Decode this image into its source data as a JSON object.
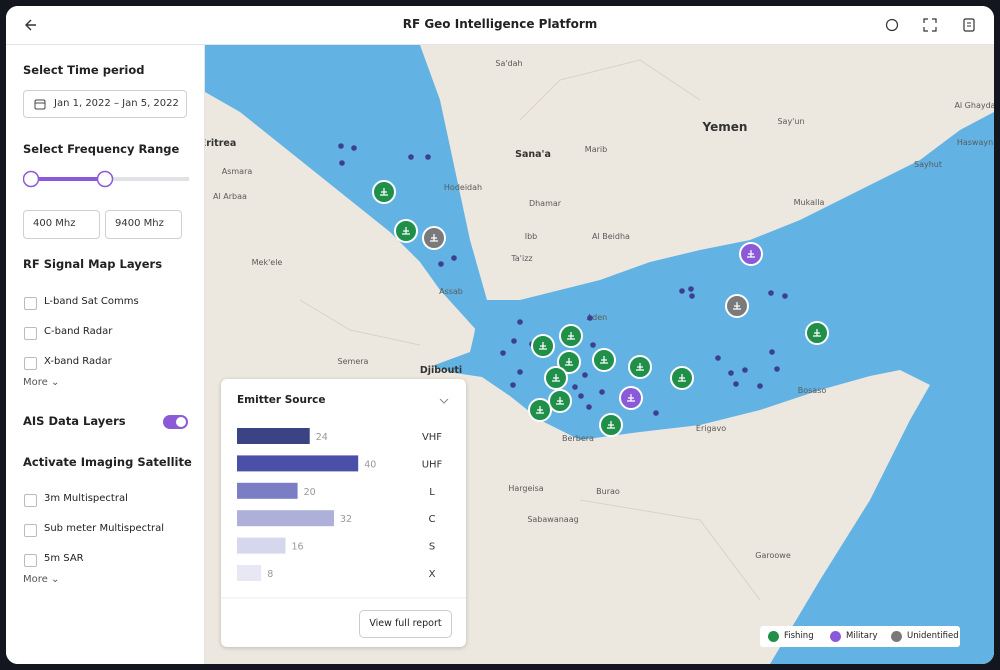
{
  "header": {
    "title": "RF Geo Intelligence Platform"
  },
  "sidebar": {
    "time_period": {
      "label": "Select Time period",
      "value": "Jan 1, 2022 – Jan 5, 2022"
    },
    "frequency": {
      "label": "Select Frequency Range",
      "min": "400 Mhz",
      "max": "9400 Mhz"
    },
    "rf_layers": {
      "title": "RF Signal Map Layers",
      "items": [
        "L-band Sat Comms",
        "C-band Radar",
        "X-band Radar"
      ],
      "more": "More"
    },
    "ais": {
      "label": "AIS Data Layers",
      "enabled": true
    },
    "imaging": {
      "title": "Activate Imaging Satellite",
      "items": [
        "3m Multispectral",
        "Sub meter Multispectral",
        "5m SAR"
      ],
      "more": "More"
    }
  },
  "map": {
    "places": [
      "Eritrea",
      "Asmara",
      "Al Arbaa",
      "Mek'ele",
      "Assab",
      "Semera",
      "Djibouti",
      "Sa'dah",
      "Yemen",
      "Sana'a",
      "Marib",
      "Hodeidah",
      "Dhamar",
      "Ibb",
      "Al Beidha",
      "Ta'izz",
      "Aden",
      "Say'un",
      "Mukalla",
      "Al Ghayda",
      "Haswayn",
      "Sayhut",
      "Bosaso",
      "Erigavo",
      "Berbera",
      "Hargeisa",
      "Burao",
      "Sabawanaag",
      "Garoowe"
    ]
  },
  "chart_data": {
    "type": "bar",
    "orientation": "horizontal",
    "title": "Emitter Source",
    "categories": [
      "VHF",
      "UHF",
      "L",
      "C",
      "S",
      "X"
    ],
    "values": [
      24,
      40,
      20,
      32,
      16,
      8
    ],
    "colors": [
      "#3c4384",
      "#4a4fa8",
      "#7b7ec4",
      "#aeb0da",
      "#d5d7ec",
      "#e7e8f4"
    ]
  },
  "report_button": "View full report",
  "legend": [
    "Fishing",
    "Military",
    "Unidentified"
  ]
}
